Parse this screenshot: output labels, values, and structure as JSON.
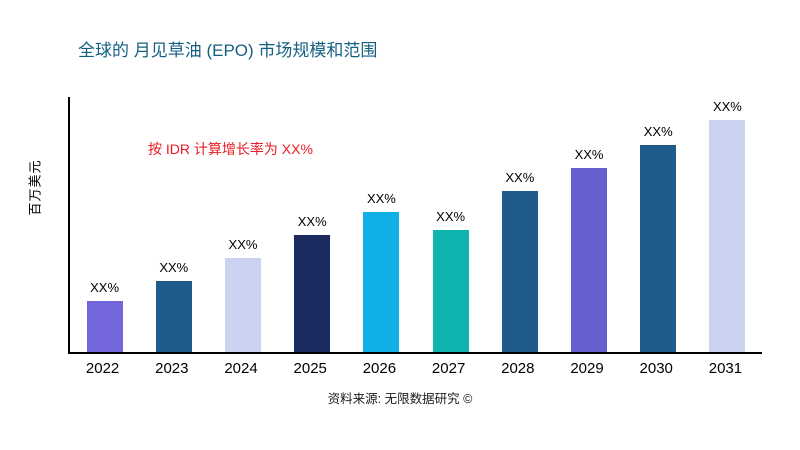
{
  "header": {
    "title": "全球的 月见草油 (EPO) 市场规模和范围"
  },
  "annotation": "按 IDR 计算增长率为 XX%",
  "source": "资料来源: 无限数据研究 ©",
  "colors": {
    "title": "#156082",
    "annotation": "#ed1c24",
    "axis": "#000000",
    "background": "#ffffff"
  },
  "chart_data": {
    "type": "bar",
    "title": "全球的 月见草油 (EPO) 市场规模和范围",
    "xlabel": "",
    "ylabel": "百万美元",
    "categories": [
      "2022",
      "2023",
      "2024",
      "2025",
      "2026",
      "2027",
      "2028",
      "2029",
      "2030",
      "2031"
    ],
    "values": [
      20,
      28,
      37,
      46,
      55,
      48,
      63,
      72,
      81,
      91
    ],
    "bar_labels": [
      "XX%",
      "XX%",
      "XX%",
      "XX%",
      "XX%",
      "XX%",
      "XX%",
      "XX%",
      "XX%",
      "XX%"
    ],
    "bar_colors": [
      "#7466dd",
      "#1f5c8a",
      "#ccd2f2",
      "#1c2b5f",
      "#0fb0e8",
      "#0fb4af",
      "#1f5c8a",
      "#655fd0",
      "#1f5c8a",
      "#ccd2f2"
    ],
    "ylim": [
      0,
      100
    ],
    "grid": false,
    "legend": false,
    "note": "values are estimated relative heights in % of axis; bars labeled XX% in source image"
  }
}
